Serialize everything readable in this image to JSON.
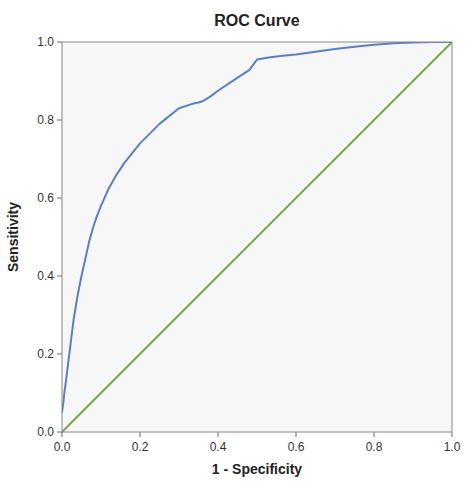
{
  "chart_data": {
    "type": "line",
    "title": "ROC Curve",
    "xlabel": "1 - Specificity",
    "ylabel": "Sensitivity",
    "series": [
      {
        "color": "#5B7FC4",
        "x": [
          0.0,
          0.002,
          0.004,
          0.006,
          0.01,
          0.015,
          0.02,
          0.025,
          0.03,
          0.04,
          0.05,
          0.06,
          0.07,
          0.08,
          0.09,
          0.1,
          0.12,
          0.14,
          0.16,
          0.18,
          0.2,
          0.25,
          0.3,
          0.33,
          0.34,
          0.35,
          0.36,
          0.38,
          0.4,
          0.43,
          0.46,
          0.48,
          0.5,
          0.53,
          0.56,
          0.58,
          0.6,
          0.65,
          0.7,
          0.75,
          0.8,
          0.85,
          0.9,
          0.95,
          1.0
        ],
        "values": [
          0.05,
          0.065,
          0.08,
          0.1,
          0.13,
          0.17,
          0.21,
          0.25,
          0.29,
          0.35,
          0.4,
          0.445,
          0.49,
          0.525,
          0.555,
          0.58,
          0.625,
          0.66,
          0.69,
          0.715,
          0.74,
          0.79,
          0.83,
          0.84,
          0.843,
          0.845,
          0.848,
          0.86,
          0.875,
          0.895,
          0.915,
          0.928,
          0.955,
          0.96,
          0.964,
          0.966,
          0.968,
          0.975,
          0.982,
          0.988,
          0.993,
          0.997,
          0.999,
          1.0,
          1.0
        ]
      },
      {
        "color": "#70AD47",
        "x": [
          0,
          1
        ],
        "values": [
          0,
          1
        ]
      }
    ],
    "xlim": [
      0.0,
      1.0
    ],
    "ylim": [
      0.0,
      1.0
    ],
    "xticks": [
      {
        "value": 0.0,
        "label": "0.0"
      },
      0.2,
      0.4,
      0.6,
      0.8,
      {
        "value": 1.0,
        "label": "1.0"
      }
    ],
    "yticks": [
      {
        "value": 0.0,
        "label": "0.0"
      },
      0.2,
      0.4,
      0.6,
      0.8,
      {
        "value": 1.0,
        "label": "1.0"
      }
    ],
    "grid": false
  }
}
